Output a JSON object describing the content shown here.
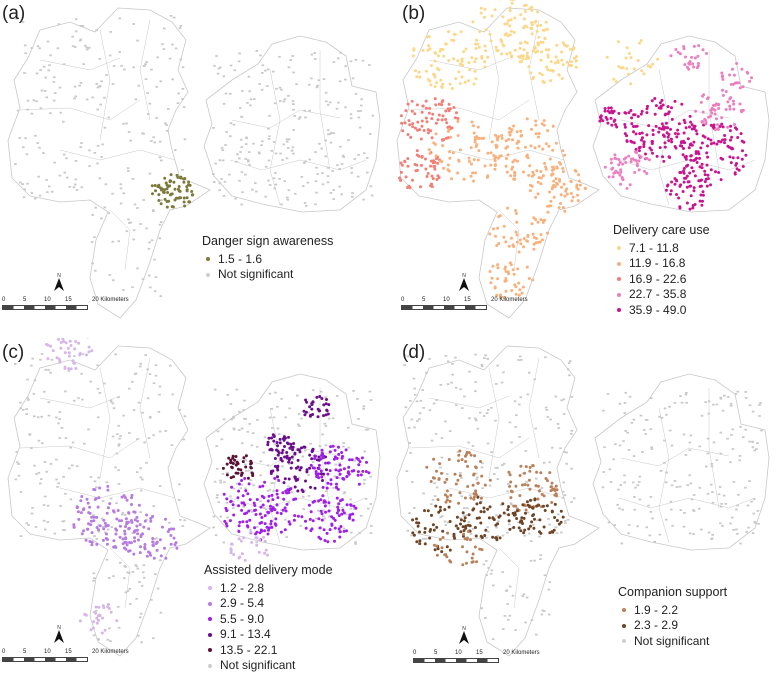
{
  "colors": {
    "boundary": "#c8c8c8",
    "not_significant": "#c9c9c9"
  },
  "scale_bar": {
    "ticks": [
      "0",
      "5",
      "10",
      "15",
      "20 Kilometers"
    ]
  },
  "north_label": "N",
  "panels": [
    {
      "label": "(a)",
      "legend_title": "Danger sign awareness",
      "legend": [
        {
          "label": "1.5 - 1.6",
          "color": "#7c7a3a"
        },
        {
          "label": "Not significant",
          "color": "#cfcfcf"
        }
      ]
    },
    {
      "label": "(b)",
      "legend_title": "Delivery care use",
      "legend": [
        {
          "label": "7.1 - 11.8",
          "color": "#fcd787"
        },
        {
          "label": "11.9 - 16.8",
          "color": "#f9b07b"
        },
        {
          "label": "16.9 -  22.6",
          "color": "#f27e76"
        },
        {
          "label": "22.7 - 35.8",
          "color": "#ec7fc0"
        },
        {
          "label": "35.9 - 49.0",
          "color": "#c8148e"
        }
      ]
    },
    {
      "label": "(c)",
      "legend_title": "Assisted delivery mode",
      "legend": [
        {
          "label": "1.2 - 2.8",
          "color": "#d6b6ea"
        },
        {
          "label": "2.9 - 5.4",
          "color": "#b77ce2"
        },
        {
          "label": "5.5 - 9.0",
          "color": "#a01fe8"
        },
        {
          "label": "9.1 - 13.4",
          "color": "#6a0e8e"
        },
        {
          "label": "13.5 - 22.1",
          "color": "#5a1235"
        },
        {
          "label": "Not significant",
          "color": "#cfcfcf"
        }
      ]
    },
    {
      "label": "(d)",
      "legend_title": "Companion support",
      "legend": [
        {
          "label": "1.9 - 2.2",
          "color": "#b9805a"
        },
        {
          "label": "2.3 - 2.9",
          "color": "#6e4426"
        },
        {
          "label": "Not significant",
          "color": "#cfcfcf"
        }
      ]
    }
  ]
}
